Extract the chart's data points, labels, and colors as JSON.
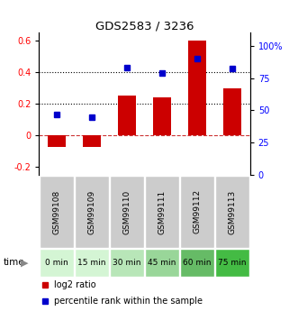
{
  "title": "GDS2583 / 3236",
  "samples": [
    "GSM99108",
    "GSM99109",
    "GSM99110",
    "GSM99111",
    "GSM99112",
    "GSM99113"
  ],
  "time_labels": [
    "0 min",
    "15 min",
    "30 min",
    "45 min",
    "60 min",
    "75 min"
  ],
  "time_colors": [
    "#d4f5d4",
    "#d4f5d4",
    "#b8e6b8",
    "#99d699",
    "#66bb66",
    "#44bb44"
  ],
  "log2_ratio": [
    -0.07,
    -0.07,
    0.25,
    0.24,
    0.6,
    0.3
  ],
  "percentile_rank": [
    47,
    45,
    83,
    79,
    90,
    82
  ],
  "bar_color": "#cc0000",
  "dot_color": "#0000cc",
  "ylim_left": [
    -0.25,
    0.65
  ],
  "ylim_right": [
    0,
    110
  ],
  "yticks_left": [
    -0.2,
    0.0,
    0.2,
    0.4,
    0.6
  ],
  "yticks_right": [
    0,
    25,
    50,
    75,
    100
  ],
  "ytick_labels_left": [
    "-0.2",
    "0",
    "0.2",
    "0.4",
    "0.6"
  ],
  "ytick_labels_right": [
    "0",
    "25",
    "50",
    "75",
    "100%"
  ],
  "hlines": [
    0.0,
    0.2,
    0.4
  ],
  "hline_styles": [
    "--",
    ":",
    ":"
  ],
  "hline_colors": [
    "#cc3333",
    "#000000",
    "#000000"
  ],
  "sample_box_color": "#cccccc",
  "legend_items": [
    {
      "label": "log2 ratio",
      "color": "#cc0000"
    },
    {
      "label": "percentile rank within the sample",
      "color": "#0000cc"
    }
  ]
}
